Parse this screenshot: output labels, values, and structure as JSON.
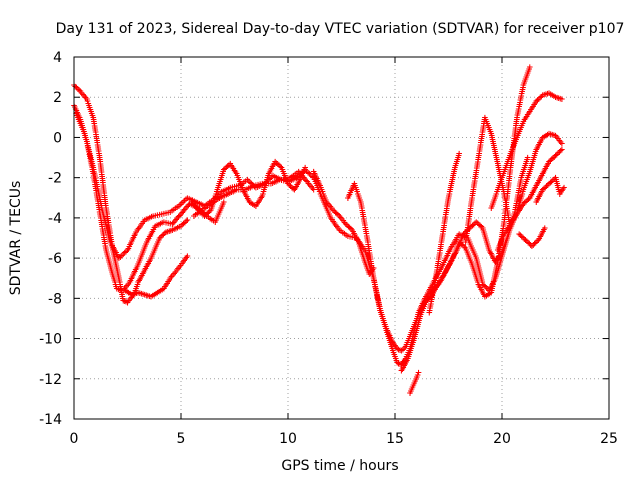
{
  "chart_data": {
    "type": "scatter",
    "title": "Day 131 of 2023, Sidereal Day-to-day VTEC variation (SDTVAR) for receiver p107",
    "xlabel": "GPS time / hours",
    "ylabel": "SDTVAR / TECUs",
    "xlim": [
      0,
      25
    ],
    "ylim": [
      -14,
      4
    ],
    "x_ticks": [
      0,
      5,
      10,
      15,
      20,
      25
    ],
    "y_ticks": [
      -14,
      -12,
      -10,
      -8,
      -6,
      -4,
      -2,
      0,
      2,
      4
    ],
    "x_tick_labels": [
      "0",
      "5",
      "10",
      "15",
      "20",
      "25"
    ],
    "y_tick_labels": [
      "-14",
      "-12",
      "-10",
      "-8",
      "-6",
      "-4",
      "-2",
      "0",
      "2",
      "4"
    ],
    "grid": true,
    "marker": "+",
    "color": "#ff0000",
    "series": [
      {
        "x": [
          0,
          0.3,
          0.6,
          0.9,
          1.2,
          1.5,
          1.8,
          2.1,
          2.3,
          2.5,
          2.8,
          3.0,
          3.3,
          3.6,
          4.0,
          4.3,
          4.6,
          5.0,
          5.3
        ],
        "y": [
          2.6,
          2.3,
          1.9,
          1.0,
          -1.0,
          -3.5,
          -5.5,
          -7.0,
          -8.1,
          -8.2,
          -7.8,
          -7.2,
          -6.6,
          -6.0,
          -5.0,
          -4.7,
          -4.6,
          -4.4,
          -4.1
        ]
      },
      {
        "x": [
          0,
          0.3,
          0.6,
          0.9,
          1.2,
          1.5,
          1.8,
          2.0,
          2.3,
          2.6,
          3.0,
          3.4,
          3.8,
          4.2,
          4.6,
          5.0,
          5.4,
          5.8,
          6.2,
          6.6,
          7.0
        ],
        "y": [
          1.6,
          0.9,
          -0.2,
          -1.8,
          -3.7,
          -5.6,
          -6.8,
          -7.5,
          -7.6,
          -7.2,
          -6.3,
          -5.2,
          -4.4,
          -4.2,
          -4.3,
          -3.8,
          -3.3,
          -3.5,
          -3.9,
          -4.2,
          -3.2
        ]
      },
      {
        "x": [
          0.1,
          0.5,
          0.9,
          1.3,
          1.7,
          2.1,
          2.5,
          2.9,
          3.3,
          3.7,
          4.1,
          4.5,
          4.9,
          5.3,
          5.7,
          6.1,
          6.5,
          6.9,
          7.3,
          7.7,
          8.1,
          8.5,
          8.9,
          9.3,
          9.7,
          10.1,
          10.5,
          10.9,
          11.2
        ],
        "y": [
          1.2,
          0.2,
          -1.5,
          -3.5,
          -5.2,
          -6.0,
          -5.6,
          -4.7,
          -4.1,
          -3.9,
          -3.8,
          -3.7,
          -3.4,
          -3.0,
          -3.2,
          -3.4,
          -3.1,
          -2.7,
          -2.5,
          -2.4,
          -2.1,
          -2.5,
          -2.3,
          -1.9,
          -2.1,
          -2.0,
          -1.7,
          -2.2,
          -2.6
        ]
      },
      {
        "x": [
          2.4,
          2.7,
          3.0,
          3.3,
          3.6,
          3.9,
          4.2,
          4.5,
          4.8,
          5.1,
          5.3
        ],
        "y": [
          -7.6,
          -7.8,
          -7.7,
          -7.8,
          -7.9,
          -7.7,
          -7.5,
          -7.0,
          -6.6,
          -6.2,
          -5.9
        ]
      },
      {
        "x": [
          5.5,
          5.8,
          6.1,
          6.4,
          6.7,
          7.0,
          7.3,
          7.6,
          7.9,
          8.2,
          8.5,
          8.8,
          9.1,
          9.4,
          9.7,
          10.0,
          10.3,
          10.6,
          10.8
        ],
        "y": [
          -3.2,
          -3.6,
          -3.9,
          -3.6,
          -2.6,
          -1.6,
          -1.3,
          -1.8,
          -2.6,
          -3.2,
          -3.4,
          -2.9,
          -1.8,
          -1.2,
          -1.5,
          -2.3,
          -2.6,
          -2.0,
          -1.5
        ]
      },
      {
        "x": [
          5.6,
          6.0,
          6.4,
          6.8,
          7.2,
          7.6,
          8.0,
          8.4,
          8.8,
          9.2,
          9.6,
          10.0,
          10.4,
          10.8,
          11.2,
          11.6,
          12.0,
          12.4,
          12.8,
          13.2,
          13.6,
          14.0,
          14.3,
          14.6,
          14.9,
          15.1,
          15.3,
          15.5,
          15.7,
          15.9,
          16.1,
          16.4,
          16.8,
          17.2,
          17.6,
          18.0,
          18.4,
          18.8,
          19.1,
          19.4,
          19.7,
          20.0,
          20.3
        ],
        "y": [
          -3.9,
          -3.6,
          -3.3,
          -3.0,
          -2.8,
          -2.6,
          -2.6,
          -2.4,
          -2.3,
          -2.3,
          -2.1,
          -2.2,
          -2.0,
          -1.6,
          -2.0,
          -3.0,
          -4.0,
          -4.6,
          -4.9,
          -5.0,
          -5.6,
          -7.0,
          -8.5,
          -9.6,
          -10.6,
          -11.2,
          -11.3,
          -11.0,
          -10.5,
          -9.6,
          -8.7,
          -8.0,
          -7.2,
          -6.4,
          -5.5,
          -4.8,
          -5.0,
          -6.0,
          -7.3,
          -7.6,
          -7.0,
          -5.9,
          -4.8
        ]
      },
      {
        "x": [
          11.2,
          11.5,
          11.8,
          12.1,
          12.4,
          12.7,
          13.0,
          13.3,
          13.6,
          13.8,
          14.0
        ],
        "y": [
          -1.7,
          -2.4,
          -3.2,
          -3.6,
          -3.9,
          -4.3,
          -4.6,
          -5.2,
          -6.2,
          -6.8,
          -6.5
        ]
      },
      {
        "x": [
          12.8,
          13.1,
          13.4,
          13.7,
          14.0,
          14.3,
          14.6,
          14.9,
          15.1,
          15.3,
          15.5,
          15.8,
          16.1,
          16.4,
          16.7,
          17.0,
          17.3,
          17.6,
          17.9,
          18.2,
          18.5,
          18.8,
          19.1,
          19.4,
          19.7,
          20.0,
          20.3,
          20.6,
          20.9,
          21.2
        ],
        "y": [
          -3.0,
          -2.3,
          -3.2,
          -5.0,
          -7.0,
          -8.6,
          -9.5,
          -10.2,
          -10.5,
          -10.6,
          -10.4,
          -9.6,
          -8.8,
          -8.2,
          -7.9,
          -7.3,
          -6.8,
          -6.2,
          -5.6,
          -4.8,
          -4.5,
          -4.2,
          -4.5,
          -5.6,
          -6.2,
          -5.7,
          -4.8,
          -3.7,
          -2.0,
          -1.0
        ]
      },
      {
        "x": [
          15.3,
          15.6,
          15.9,
          16.2,
          16.5,
          16.8,
          17.1,
          17.4,
          17.7,
          18.0,
          18.3,
          18.6,
          18.9,
          19.2,
          19.5,
          19.8,
          20.1,
          20.4,
          20.7,
          21.0,
          21.3
        ],
        "y": [
          -11.6,
          -11.0,
          -10.0,
          -8.8,
          -8.0,
          -7.6,
          -7.2,
          -6.6,
          -6.0,
          -5.2,
          -5.5,
          -6.3,
          -7.3,
          -7.9,
          -7.7,
          -6.2,
          -4.2,
          -1.5,
          1.0,
          2.6,
          3.5
        ]
      },
      {
        "x": [
          15.7,
          15.9,
          16.1
        ],
        "y": [
          -12.7,
          -12.2,
          -11.7
        ]
      },
      {
        "x": [
          16.6,
          16.9,
          17.2,
          17.5,
          17.8,
          18.0
        ],
        "y": [
          -8.7,
          -7.0,
          -5.0,
          -3.0,
          -1.5,
          -0.8
        ]
      },
      {
        "x": [
          18.3,
          18.6,
          18.9,
          19.2,
          19.5,
          19.8,
          20.1,
          20.4,
          20.7,
          21.0,
          21.3,
          21.6,
          21.9,
          22.2,
          22.5,
          22.8
        ],
        "y": [
          -5.2,
          -3.0,
          -1.0,
          1.0,
          0.2,
          -1.3,
          -2.8,
          -4.5,
          -3.7,
          -2.6,
          -1.7,
          -0.6,
          0.0,
          0.2,
          0.1,
          -0.3
        ]
      },
      {
        "x": [
          19.5,
          19.8,
          20.1,
          20.4,
          20.7,
          21.0,
          21.3,
          21.6,
          21.9,
          22.2,
          22.5,
          22.8
        ],
        "y": [
          -3.5,
          -2.6,
          -1.7,
          -0.8,
          0.0,
          0.8,
          1.3,
          1.8,
          2.1,
          2.2,
          2.0,
          1.9
        ]
      },
      {
        "x": [
          19.8,
          20.1,
          20.4,
          20.7,
          21.0,
          21.3,
          21.6,
          21.9,
          22.2,
          22.5,
          22.8
        ],
        "y": [
          -5.6,
          -4.8,
          -4.3,
          -3.8,
          -3.3,
          -3.0,
          -2.4,
          -1.8,
          -1.2,
          -0.9,
          -0.6
        ]
      },
      {
        "x": [
          20.8,
          21.1,
          21.4,
          21.7,
          22.0
        ],
        "y": [
          -4.8,
          -5.1,
          -5.4,
          -5.1,
          -4.5
        ]
      },
      {
        "x": [
          21.6,
          21.9,
          22.2,
          22.5,
          22.7,
          22.9
        ],
        "y": [
          -3.2,
          -2.6,
          -2.3,
          -2.0,
          -2.8,
          -2.5
        ]
      }
    ]
  }
}
